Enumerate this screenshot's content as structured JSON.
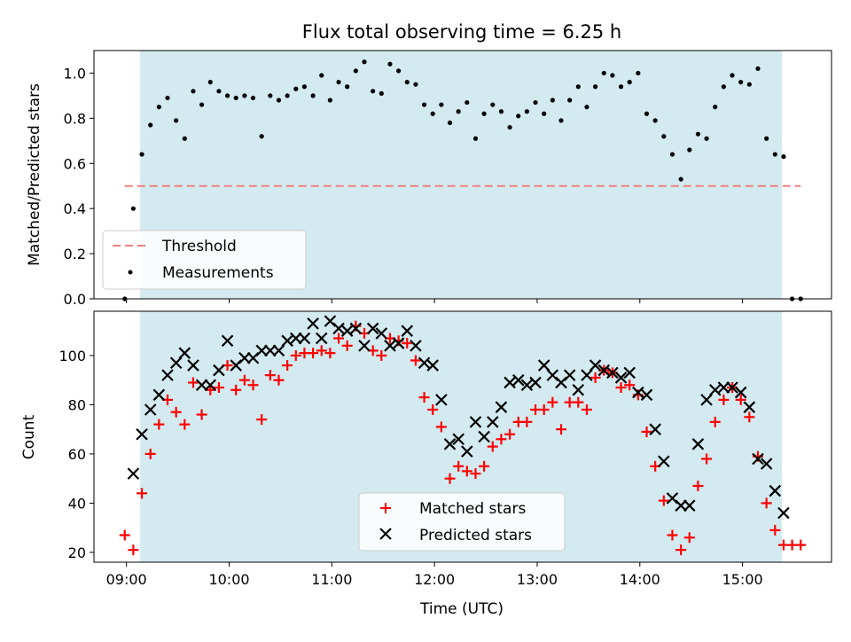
{
  "colors": {
    "shade": "#d3eaf0",
    "threshold": "#f08080",
    "measurement": "#000000",
    "matched": "#ff0000",
    "predicted": "#000000"
  },
  "chart_data": [
    {
      "type": "scatter",
      "title": "Flux total observing time = 6.25 h",
      "xlabel": "",
      "ylabel": "Matched/Predicted stars",
      "ylim": [
        0,
        1.1
      ],
      "yticks": [
        "0.0",
        "0.2",
        "0.4",
        "0.6",
        "0.8",
        "1.0"
      ],
      "shaded_span": [
        "09:08",
        "15:23"
      ],
      "threshold": {
        "name": "Threshold",
        "value": 0.5,
        "x_range": [
          "08:59",
          "15:34"
        ]
      },
      "legend": {
        "placement": "lower-left",
        "entries": [
          "Threshold",
          "Measurements"
        ]
      },
      "series": [
        {
          "name": "Measurements",
          "x": [
            "08:59",
            "09:04",
            "09:09",
            "09:14",
            "09:19",
            "09:24",
            "09:29",
            "09:34",
            "09:39",
            "09:44",
            "09:49",
            "09:54",
            "09:59",
            "10:04",
            "10:09",
            "10:14",
            "10:19",
            "10:24",
            "10:29",
            "10:34",
            "10:39",
            "10:44",
            "10:49",
            "10:54",
            "10:59",
            "11:04",
            "11:09",
            "11:14",
            "11:19",
            "11:24",
            "11:29",
            "11:34",
            "11:39",
            "11:44",
            "11:49",
            "11:54",
            "11:59",
            "12:04",
            "12:09",
            "12:14",
            "12:19",
            "12:24",
            "12:29",
            "12:34",
            "12:39",
            "12:44",
            "12:49",
            "12:54",
            "12:59",
            "13:04",
            "13:09",
            "13:14",
            "13:19",
            "13:24",
            "13:29",
            "13:34",
            "13:39",
            "13:44",
            "13:49",
            "13:54",
            "13:59",
            "14:04",
            "14:09",
            "14:14",
            "14:19",
            "14:24",
            "14:29",
            "14:34",
            "14:39",
            "14:44",
            "14:49",
            "14:54",
            "14:59",
            "15:04",
            "15:09",
            "15:14",
            "15:19",
            "15:24",
            "15:29",
            "15:34"
          ],
          "y": [
            0.0,
            0.4,
            0.64,
            0.77,
            0.85,
            0.89,
            0.79,
            0.71,
            0.92,
            0.86,
            0.96,
            0.92,
            0.9,
            0.89,
            0.9,
            0.89,
            0.72,
            0.9,
            0.88,
            0.9,
            0.93,
            0.94,
            0.9,
            0.99,
            0.88,
            0.96,
            0.94,
            1.01,
            1.05,
            0.92,
            0.91,
            1.04,
            1.01,
            0.96,
            0.95,
            0.86,
            0.82,
            0.86,
            0.78,
            0.83,
            0.87,
            0.71,
            0.82,
            0.86,
            0.83,
            0.76,
            0.81,
            0.83,
            0.87,
            0.82,
            0.88,
            0.79,
            0.88,
            0.94,
            0.85,
            0.94,
            1.0,
            0.99,
            0.94,
            0.96,
            1.0,
            0.82,
            0.79,
            0.72,
            0.64,
            0.53,
            0.66,
            0.73,
            0.71,
            0.85,
            0.94,
            0.99,
            0.96,
            0.95,
            1.02,
            0.71,
            0.64,
            0.63,
            0.0,
            0.0
          ]
        }
      ]
    },
    {
      "type": "scatter",
      "title": "",
      "xlabel": "Time (UTC)",
      "ylabel": "Count",
      "ylim": [
        16,
        118
      ],
      "yticks": [
        "20",
        "40",
        "60",
        "80",
        "100"
      ],
      "xticks": [
        "09:00",
        "10:00",
        "11:00",
        "12:00",
        "13:00",
        "14:00",
        "15:00"
      ],
      "shaded_span": [
        "09:08",
        "15:23"
      ],
      "legend": {
        "placement": "lower-center",
        "entries": [
          "Matched stars",
          "Predicted stars"
        ]
      },
      "series": [
        {
          "name": "Matched stars",
          "x": [
            "08:59",
            "09:04",
            "09:09",
            "09:14",
            "09:19",
            "09:24",
            "09:29",
            "09:34",
            "09:39",
            "09:44",
            "09:49",
            "09:54",
            "09:59",
            "10:04",
            "10:09",
            "10:14",
            "10:19",
            "10:24",
            "10:29",
            "10:34",
            "10:39",
            "10:44",
            "10:49",
            "10:54",
            "10:59",
            "11:04",
            "11:09",
            "11:14",
            "11:19",
            "11:24",
            "11:29",
            "11:34",
            "11:39",
            "11:44",
            "11:49",
            "11:54",
            "11:59",
            "12:04",
            "12:09",
            "12:14",
            "12:19",
            "12:24",
            "12:29",
            "12:34",
            "12:39",
            "12:44",
            "12:49",
            "12:54",
            "12:59",
            "13:04",
            "13:09",
            "13:14",
            "13:19",
            "13:24",
            "13:29",
            "13:34",
            "13:39",
            "13:44",
            "13:49",
            "13:54",
            "13:59",
            "14:04",
            "14:09",
            "14:14",
            "14:19",
            "14:24",
            "14:29",
            "14:34",
            "14:39",
            "14:44",
            "14:49",
            "14:54",
            "14:59",
            "15:04",
            "15:09",
            "15:14",
            "15:19",
            "15:24",
            "15:29",
            "15:34"
          ],
          "y": [
            27,
            21,
            44,
            60,
            72,
            82,
            77,
            72,
            89,
            76,
            86,
            87,
            96,
            86,
            90,
            88,
            74,
            92,
            90,
            96,
            100,
            101,
            101,
            102,
            101,
            107,
            104,
            112,
            109,
            102,
            100,
            107,
            106,
            105,
            98,
            83,
            78,
            71,
            50,
            55,
            53,
            52,
            55,
            63,
            66,
            68,
            73,
            73,
            78,
            78,
            81,
            70,
            81,
            81,
            78,
            91,
            94,
            93,
            87,
            88,
            84,
            69,
            55,
            41,
            27,
            21,
            26,
            47,
            58,
            73,
            82,
            87,
            82,
            75,
            59,
            40,
            29,
            23,
            23,
            23
          ]
        },
        {
          "name": "Predicted stars",
          "x": [
            "09:04",
            "09:09",
            "09:14",
            "09:19",
            "09:24",
            "09:29",
            "09:34",
            "09:39",
            "09:44",
            "09:49",
            "09:54",
            "09:59",
            "10:04",
            "10:09",
            "10:14",
            "10:19",
            "10:24",
            "10:29",
            "10:34",
            "10:39",
            "10:44",
            "10:49",
            "10:54",
            "10:59",
            "11:04",
            "11:09",
            "11:14",
            "11:19",
            "11:24",
            "11:29",
            "11:34",
            "11:39",
            "11:44",
            "11:49",
            "11:54",
            "11:59",
            "12:04",
            "12:09",
            "12:14",
            "12:19",
            "12:24",
            "12:29",
            "12:34",
            "12:39",
            "12:44",
            "12:49",
            "12:54",
            "12:59",
            "13:04",
            "13:09",
            "13:14",
            "13:19",
            "13:24",
            "13:29",
            "13:34",
            "13:39",
            "13:44",
            "13:49",
            "13:54",
            "13:59",
            "14:04",
            "14:09",
            "14:14",
            "14:19",
            "14:24",
            "14:29",
            "14:34",
            "14:39",
            "14:44",
            "14:49",
            "14:54",
            "14:59",
            "15:04",
            "15:09",
            "15:14",
            "15:19",
            "15:24"
          ],
          "y": [
            52,
            68,
            78,
            84,
            92,
            97,
            101,
            96,
            88,
            88,
            94,
            106,
            96,
            99,
            99,
            102,
            102,
            102,
            106,
            107,
            107,
            113,
            107,
            114,
            111,
            110,
            111,
            104,
            111,
            109,
            104,
            105,
            110,
            104,
            97,
            96,
            82,
            64,
            66,
            61,
            73,
            67,
            73,
            79,
            89,
            90,
            88,
            89,
            96,
            92,
            89,
            92,
            86,
            92,
            96,
            94,
            93,
            91,
            93,
            85,
            84,
            70,
            57,
            42,
            39,
            39,
            64,
            82,
            86,
            87,
            87,
            85,
            79,
            58,
            56,
            45,
            36
          ]
        }
      ]
    }
  ]
}
